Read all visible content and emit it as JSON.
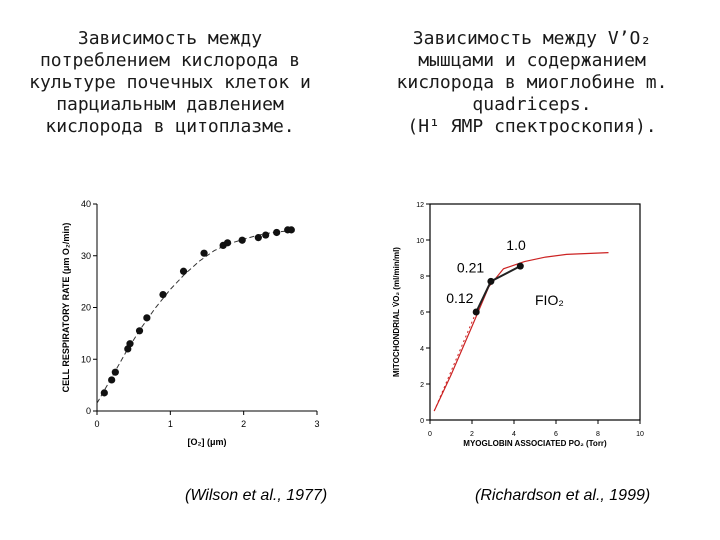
{
  "titles": {
    "left": [
      "Зависимость между",
      "потреблением кислорода в",
      "культуре почечных клеток и",
      "парциальным давлением",
      "кислорода в цитоплазме."
    ],
    "right": [
      "Зависимость между V’O₂",
      "мышцами и содержанием",
      "кислорода в миоглобине m.",
      "quadriceps.",
      "(H¹ ЯМР спектроскопия)."
    ]
  },
  "citations": {
    "left": "(Wilson et al., 1977)",
    "right": "(Richardson et al., 1999)"
  },
  "colors": {
    "axis": "#000000",
    "curve_right": "#cc2222",
    "points": "#111111"
  },
  "chart_data": [
    {
      "type": "scatter",
      "title": "",
      "xlabel": "[O₂] (μm)",
      "ylabel": "CELL RESPIRATORY RATE (μm O₂/min)",
      "xlim": [
        0,
        3
      ],
      "ylim": [
        0,
        40
      ],
      "xticks": [
        0,
        1,
        2,
        3
      ],
      "yticks": [
        0,
        10,
        20,
        30,
        40
      ],
      "grid": false,
      "series": [
        {
          "x": [
            0.1,
            0.2,
            0.25,
            0.42,
            0.45,
            0.58,
            0.68,
            0.9,
            1.18,
            1.46,
            1.72,
            1.78,
            1.98,
            2.2,
            2.3,
            2.45,
            2.6,
            2.65
          ],
          "y": [
            3.5,
            6,
            7.5,
            12,
            13,
            15.5,
            18,
            22.5,
            27,
            30.5,
            32,
            32.5,
            33,
            33.5,
            34,
            34.5,
            35,
            35
          ]
        }
      ],
      "fit_curve": {
        "x": [
          0,
          0.2,
          0.4,
          0.6,
          0.8,
          1.0,
          1.2,
          1.4,
          1.6,
          1.8,
          2.0,
          2.2,
          2.4,
          2.6,
          2.7
        ],
        "y": [
          1.5,
          6.5,
          11.5,
          16,
          20,
          23.5,
          26.5,
          29,
          31,
          32.3,
          33.2,
          34,
          34.5,
          34.8,
          35
        ]
      }
    },
    {
      "type": "line",
      "title": "",
      "xlabel": "MYOGLOBIN ASSOCIATED PO₂ (Torr)",
      "ylabel": "MITOCHONDRIAL V̇O₂ (ml/min/ml)",
      "xlim": [
        0,
        10
      ],
      "ylim": [
        0,
        12
      ],
      "xticks": [
        0,
        2,
        4,
        6,
        8,
        10
      ],
      "yticks": [
        0,
        2,
        4,
        6,
        8,
        10,
        12
      ],
      "grid": false,
      "series": [
        {
          "x": [
            0.2,
            1,
            2,
            2.8,
            3.5,
            4.5,
            5.5,
            6.5,
            7.5,
            8.5
          ],
          "y": [
            0.5,
            2.5,
            5.2,
            7.4,
            8.4,
            8.8,
            9.05,
            9.2,
            9.25,
            9.3
          ]
        }
      ],
      "points": [
        {
          "label": "0.12",
          "x": 2.2,
          "y": 6.0
        },
        {
          "label": "0.21",
          "x": 2.9,
          "y": 7.7
        },
        {
          "label": "1.0",
          "x": 4.3,
          "y": 8.55
        }
      ],
      "dotted_extrapolation": {
        "x": [
          0.2,
          2.2
        ],
        "y": [
          0.5,
          6.0
        ]
      },
      "annotation": "FIO₂"
    }
  ]
}
